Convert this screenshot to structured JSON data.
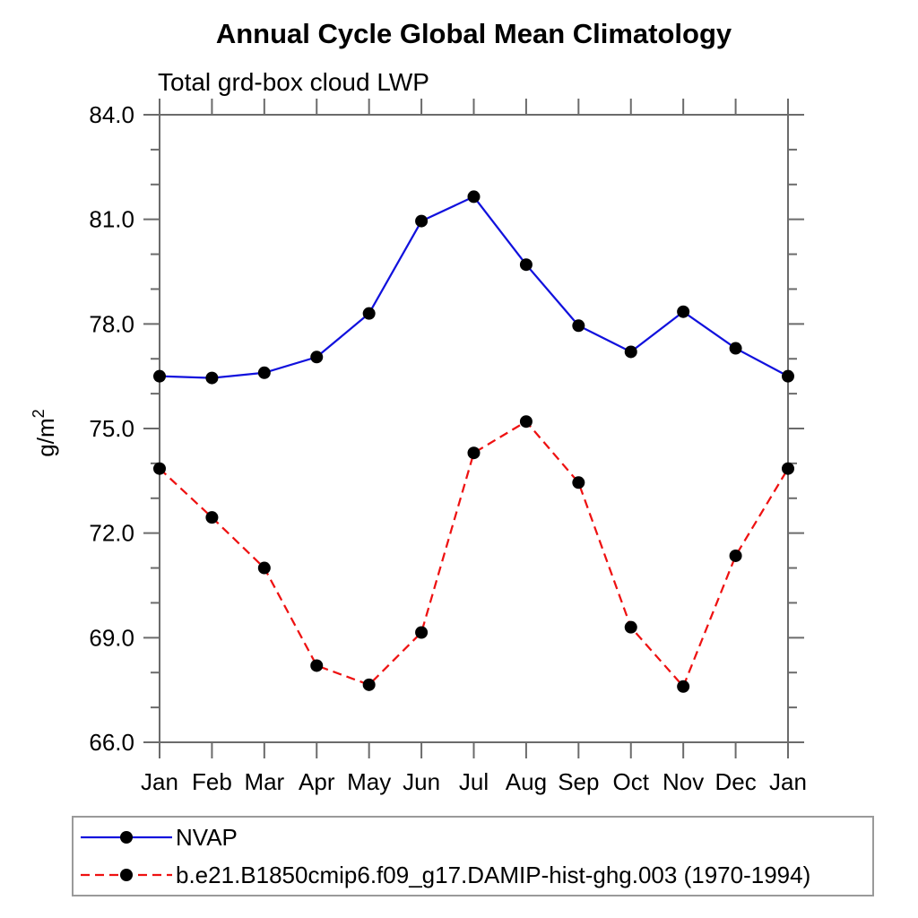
{
  "chart_data": {
    "type": "line",
    "title": "Annual Cycle Global Mean Climatology",
    "subtitle": "Total grd-box cloud LWP",
    "ylabel_base": "g/m",
    "ylabel_superscript": "2",
    "xlabel": "",
    "categories": [
      "Jan",
      "Feb",
      "Mar",
      "Apr",
      "May",
      "Jun",
      "Jul",
      "Aug",
      "Sep",
      "Oct",
      "Nov",
      "Dec",
      "Jan"
    ],
    "ylim": [
      66.0,
      84.0
    ],
    "ytick_major_values": [
      84.0,
      81.0,
      78.0,
      75.0,
      72.0,
      69.0,
      66.0
    ],
    "ytick_major_labels": [
      "84.0",
      "81.0",
      "78.0",
      "75.0",
      "72.0",
      "69.0",
      "66.0"
    ],
    "ytick_minor_step": 1.0,
    "grid": false,
    "legend_position": "bottom",
    "axis_color": "#6b6b6b",
    "marker_color": "#000000",
    "series": [
      {
        "name": "NVAP",
        "color": "#1111dd",
        "line_style": "solid",
        "marker": "filled-circle",
        "values": [
          76.5,
          76.45,
          76.6,
          77.05,
          78.3,
          80.95,
          81.65,
          79.7,
          77.95,
          77.2,
          78.35,
          77.3,
          76.5
        ]
      },
      {
        "name": "b.e21.B1850cmip6.f09_g17.DAMIP-hist-ghg.003 (1970-1994)",
        "color": "#ee1111",
        "line_style": "dashed",
        "marker": "filled-circle",
        "values": [
          73.85,
          72.45,
          71.0,
          68.2,
          67.65,
          69.15,
          74.3,
          75.2,
          73.45,
          69.3,
          67.6,
          71.35,
          73.85
        ]
      }
    ]
  }
}
